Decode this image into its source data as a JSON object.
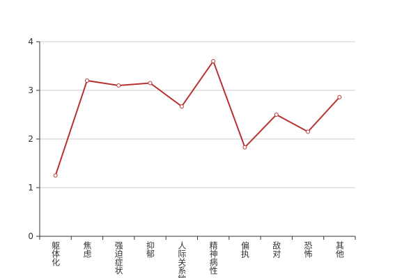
{
  "chart_data": {
    "type": "line",
    "categories": [
      "躯体化",
      "焦虑",
      "强迫症状",
      "抑郁",
      "人际关系敏感",
      "精神病性",
      "偏执",
      "敌对",
      "恐怖",
      "其他"
    ],
    "values": [
      1.25,
      3.2,
      3.1,
      3.15,
      2.67,
      3.6,
      1.83,
      2.5,
      2.15,
      2.86
    ],
    "color": "#b83232",
    "ylim": [
      0,
      4
    ],
    "yticks": [
      0,
      1,
      2,
      3,
      4
    ],
    "grid": true
  }
}
